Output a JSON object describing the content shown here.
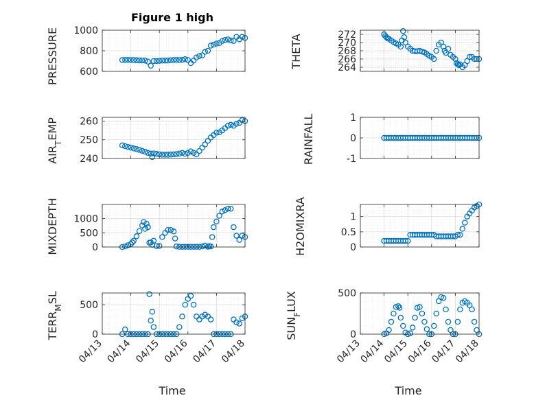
{
  "figure": {
    "title": "Figure 1 high",
    "xlabel": "Time",
    "marker_color": "#0072BD",
    "x_ticks": [
      "04/13",
      "04/14",
      "04/15",
      "04/16",
      "04/17",
      "04/18"
    ]
  },
  "chart_data": [
    {
      "type": "scatter",
      "ylabel": "PRESSURE",
      "ylim": [
        600,
        1000
      ],
      "yticks": [
        "600",
        "800",
        "1000"
      ],
      "xlim": [
        0,
        5
      ],
      "grid": true,
      "minor_grid": true,
      "x": [
        0.7,
        0.8,
        0.9,
        1.0,
        1.1,
        1.2,
        1.3,
        1.4,
        1.5,
        1.6,
        1.7,
        1.8,
        1.9,
        2.0,
        2.1,
        2.2,
        2.3,
        2.4,
        2.5,
        2.6,
        2.7,
        2.8,
        2.9,
        3.0,
        3.1,
        3.2,
        3.3,
        3.4,
        3.5,
        3.6,
        3.7,
        3.8,
        3.9,
        4.0,
        4.1,
        4.2,
        4.3,
        4.4,
        4.5,
        4.6,
        4.7,
        4.8,
        4.9,
        5.0
      ],
      "y": [
        710,
        712,
        712,
        710,
        710,
        708,
        707,
        706,
        705,
        695,
        655,
        700,
        700,
        702,
        705,
        705,
        705,
        708,
        710,
        712,
        710,
        712,
        718,
        710,
        680,
        705,
        735,
        748,
        755,
        790,
        800,
        850,
        860,
        870,
        875,
        895,
        905,
        910,
        900,
        895,
        935,
        912,
        935,
        925
      ]
    },
    {
      "type": "scatter",
      "ylabel": "THETA",
      "ylim": [
        263,
        273
      ],
      "yticks": [
        "264",
        "266",
        "268",
        "270",
        "272"
      ],
      "xlim": [
        0,
        5
      ],
      "grid": true,
      "minor_grid": true,
      "x": [
        1.0,
        1.05,
        1.1,
        1.15,
        1.2,
        1.3,
        1.4,
        1.5,
        1.6,
        1.7,
        1.75,
        1.8,
        1.85,
        1.9,
        2.0,
        2.1,
        2.2,
        2.3,
        2.4,
        2.5,
        2.6,
        2.7,
        2.8,
        2.9,
        3.0,
        3.1,
        3.2,
        3.3,
        3.4,
        3.5,
        3.55,
        3.6,
        3.7,
        3.8,
        3.9,
        4.0,
        4.05,
        4.1,
        4.15,
        4.2,
        4.3,
        4.4,
        4.5,
        4.6,
        4.7,
        4.8,
        4.9,
        5.0
      ],
      "y": [
        272.0,
        271.6,
        271.3,
        271.0,
        270.9,
        270.5,
        270.1,
        269.8,
        269.5,
        269.0,
        270.5,
        272.8,
        271.3,
        270.0,
        269.0,
        268.5,
        268.0,
        267.9,
        267.9,
        268.0,
        267.8,
        267.6,
        267.2,
        266.8,
        266.5,
        266.0,
        268.0,
        269.5,
        270.0,
        269.0,
        268.0,
        267.5,
        268.5,
        267.0,
        266.5,
        266.0,
        265.0,
        264.7,
        264.5,
        264.7,
        264.0,
        264.5,
        265.5,
        266.5,
        266.5,
        266.0,
        266.0,
        266.0
      ]
    },
    {
      "type": "scatter",
      "ylabel": "AIR_TEMP",
      "ylim": [
        240,
        262
      ],
      "yticks": [
        "240",
        "250",
        "260"
      ],
      "xlim": [
        0,
        5
      ],
      "grid": true,
      "minor_grid": true,
      "x": [
        0.7,
        0.8,
        0.9,
        1.0,
        1.1,
        1.2,
        1.3,
        1.4,
        1.5,
        1.6,
        1.7,
        1.75,
        1.8,
        1.9,
        2.0,
        2.1,
        2.2,
        2.3,
        2.4,
        2.5,
        2.6,
        2.7,
        2.8,
        2.9,
        3.0,
        3.1,
        3.2,
        3.3,
        3.4,
        3.5,
        3.6,
        3.7,
        3.8,
        3.9,
        4.0,
        4.1,
        4.2,
        4.3,
        4.4,
        4.5,
        4.6,
        4.7,
        4.8,
        4.9,
        5.0
      ],
      "y": [
        247.0,
        246.6,
        246.2,
        245.8,
        245.4,
        245.0,
        244.6,
        244.1,
        243.6,
        243.0,
        242.6,
        240.8,
        242.7,
        242.5,
        242.2,
        242.0,
        242.0,
        242.0,
        242.1,
        242.2,
        242.4,
        242.6,
        243.0,
        242.5,
        243.0,
        243.8,
        243.0,
        242.2,
        244.0,
        245.8,
        247.5,
        249.5,
        251.2,
        252.5,
        253.8,
        254.0,
        255.0,
        256.2,
        257.5,
        258.0,
        257.5,
        258.5,
        259.0,
        260.5,
        260.0
      ]
    },
    {
      "type": "scatter",
      "ylabel": "RAINFALL",
      "ylim": [
        -1,
        1
      ],
      "yticks": [
        "-1",
        "0",
        "1"
      ],
      "xlim": [
        0,
        5
      ],
      "grid": true,
      "minor_grid": true,
      "x": [
        1.0,
        1.1,
        1.2,
        1.3,
        1.4,
        1.5,
        1.6,
        1.7,
        1.8,
        1.9,
        2.0,
        2.1,
        2.2,
        2.3,
        2.4,
        2.5,
        2.6,
        2.7,
        2.8,
        2.9,
        3.0,
        3.1,
        3.2,
        3.3,
        3.4,
        3.5,
        3.6,
        3.7,
        3.8,
        3.9,
        4.0,
        4.1,
        4.2,
        4.3,
        4.4,
        4.5,
        4.6,
        4.7,
        4.8,
        4.9,
        5.0
      ],
      "y": [
        0,
        0,
        0,
        0,
        0,
        0,
        0,
        0,
        0,
        0,
        0,
        0,
        0,
        0,
        0,
        0,
        0,
        0,
        0,
        0,
        0,
        0,
        0,
        0,
        0,
        0,
        0,
        0,
        0,
        0,
        0,
        0,
        0,
        0,
        0,
        0,
        0,
        0,
        0,
        0,
        0
      ]
    },
    {
      "type": "scatter",
      "ylabel": "MIXDEPTH",
      "ylim": [
        0,
        1500
      ],
      "yticks": [
        "0",
        "500",
        "1000"
      ],
      "xlim": [
        0,
        5
      ],
      "grid": true,
      "minor_grid": true,
      "x": [
        0.7,
        0.8,
        0.9,
        1.0,
        1.05,
        1.1,
        1.2,
        1.3,
        1.4,
        1.45,
        1.5,
        1.55,
        1.6,
        1.65,
        1.7,
        1.75,
        1.8,
        1.9,
        2.0,
        2.1,
        2.2,
        2.3,
        2.4,
        2.5,
        2.55,
        2.6,
        2.7,
        2.8,
        2.9,
        3.0,
        3.1,
        3.2,
        3.3,
        3.4,
        3.5,
        3.6,
        3.7,
        3.75,
        3.8,
        3.85,
        3.9,
        4.0,
        4.1,
        4.2,
        4.3,
        4.4,
        4.5,
        4.6,
        4.7,
        4.8,
        4.9,
        5.0
      ],
      "y": [
        0,
        20,
        60,
        100,
        160,
        220,
        380,
        560,
        760,
        880,
        640,
        820,
        700,
        150,
        160,
        80,
        220,
        30,
        40,
        350,
        500,
        600,
        600,
        550,
        300,
        20,
        5,
        5,
        5,
        5,
        5,
        5,
        5,
        5,
        20,
        50,
        10,
        30,
        20,
        350,
        700,
        900,
        1100,
        1250,
        1300,
        1350,
        1350,
        700,
        400,
        250,
        400,
        350
      ]
    },
    {
      "type": "scatter",
      "ylabel": "H2OMIXRA",
      "ylim": [
        0,
        1.4
      ],
      "yticks": [
        "0",
        "0.5",
        "1"
      ],
      "xlim": [
        0,
        5
      ],
      "grid": true,
      "minor_grid": true,
      "x": [
        1.0,
        1.1,
        1.2,
        1.3,
        1.4,
        1.5,
        1.6,
        1.7,
        1.8,
        1.9,
        2.0,
        2.1,
        2.2,
        2.3,
        2.4,
        2.5,
        2.6,
        2.7,
        2.8,
        2.9,
        3.0,
        3.1,
        3.2,
        3.3,
        3.4,
        3.5,
        3.6,
        3.7,
        3.8,
        3.9,
        4.0,
        4.1,
        4.2,
        4.3,
        4.4,
        4.5,
        4.6,
        4.7,
        4.8,
        4.9,
        5.0
      ],
      "y": [
        0.2,
        0.2,
        0.2,
        0.2,
        0.2,
        0.2,
        0.2,
        0.2,
        0.2,
        0.2,
        0.2,
        0.4,
        0.4,
        0.4,
        0.4,
        0.4,
        0.4,
        0.4,
        0.4,
        0.4,
        0.4,
        0.4,
        0.35,
        0.35,
        0.35,
        0.35,
        0.35,
        0.35,
        0.35,
        0.35,
        0.35,
        0.4,
        0.4,
        0.6,
        0.8,
        1.0,
        1.1,
        1.2,
        1.3,
        1.35,
        1.4
      ]
    },
    {
      "type": "scatter",
      "ylabel": "TERR_MSL",
      "ylim": [
        0,
        700
      ],
      "yticks": [
        "0",
        "500"
      ],
      "xlim": [
        0,
        5
      ],
      "grid": true,
      "minor_grid": true,
      "x": [
        0.7,
        0.8,
        0.9,
        1.0,
        1.1,
        1.2,
        1.3,
        1.4,
        1.5,
        1.6,
        1.65,
        1.7,
        1.75,
        1.8,
        1.9,
        2.0,
        2.1,
        2.2,
        2.3,
        2.4,
        2.5,
        2.6,
        2.7,
        2.8,
        2.9,
        3.0,
        3.1,
        3.2,
        3.3,
        3.4,
        3.5,
        3.6,
        3.7,
        3.8,
        3.9,
        4.0,
        4.1,
        4.2,
        4.3,
        4.4,
        4.5,
        4.6,
        4.7,
        4.8,
        4.9,
        5.0
      ],
      "y": [
        0,
        80,
        0,
        0,
        0,
        0,
        0,
        0,
        0,
        0,
        680,
        230,
        380,
        120,
        0,
        0,
        0,
        0,
        0,
        0,
        0,
        0,
        120,
        300,
        500,
        600,
        650,
        500,
        300,
        250,
        300,
        330,
        300,
        250,
        0,
        0,
        0,
        0,
        0,
        0,
        0,
        250,
        200,
        180,
        270,
        300
      ]
    },
    {
      "type": "scatter",
      "ylabel": "SUN_FLUX",
      "ylim": [
        0,
        500
      ],
      "yticks": [
        "0",
        "500"
      ],
      "xlim": [
        0,
        5
      ],
      "grid": true,
      "minor_grid": true,
      "x": [
        1.0,
        1.1,
        1.2,
        1.3,
        1.4,
        1.5,
        1.6,
        1.65,
        1.7,
        1.8,
        1.9,
        2.0,
        2.1,
        2.2,
        2.3,
        2.4,
        2.5,
        2.6,
        2.7,
        2.8,
        2.9,
        3.0,
        3.1,
        3.2,
        3.3,
        3.4,
        3.5,
        3.6,
        3.7,
        3.8,
        3.9,
        4.0,
        4.1,
        4.2,
        4.3,
        4.4,
        4.5,
        4.6,
        4.7,
        4.8,
        4.9,
        5.0
      ],
      "y": [
        0,
        10,
        50,
        150,
        250,
        330,
        340,
        320,
        200,
        100,
        20,
        0,
        10,
        80,
        200,
        320,
        330,
        250,
        150,
        60,
        0,
        0,
        100,
        250,
        400,
        450,
        440,
        300,
        150,
        50,
        0,
        0,
        150,
        300,
        380,
        400,
        380,
        350,
        300,
        150,
        50,
        0
      ]
    }
  ]
}
